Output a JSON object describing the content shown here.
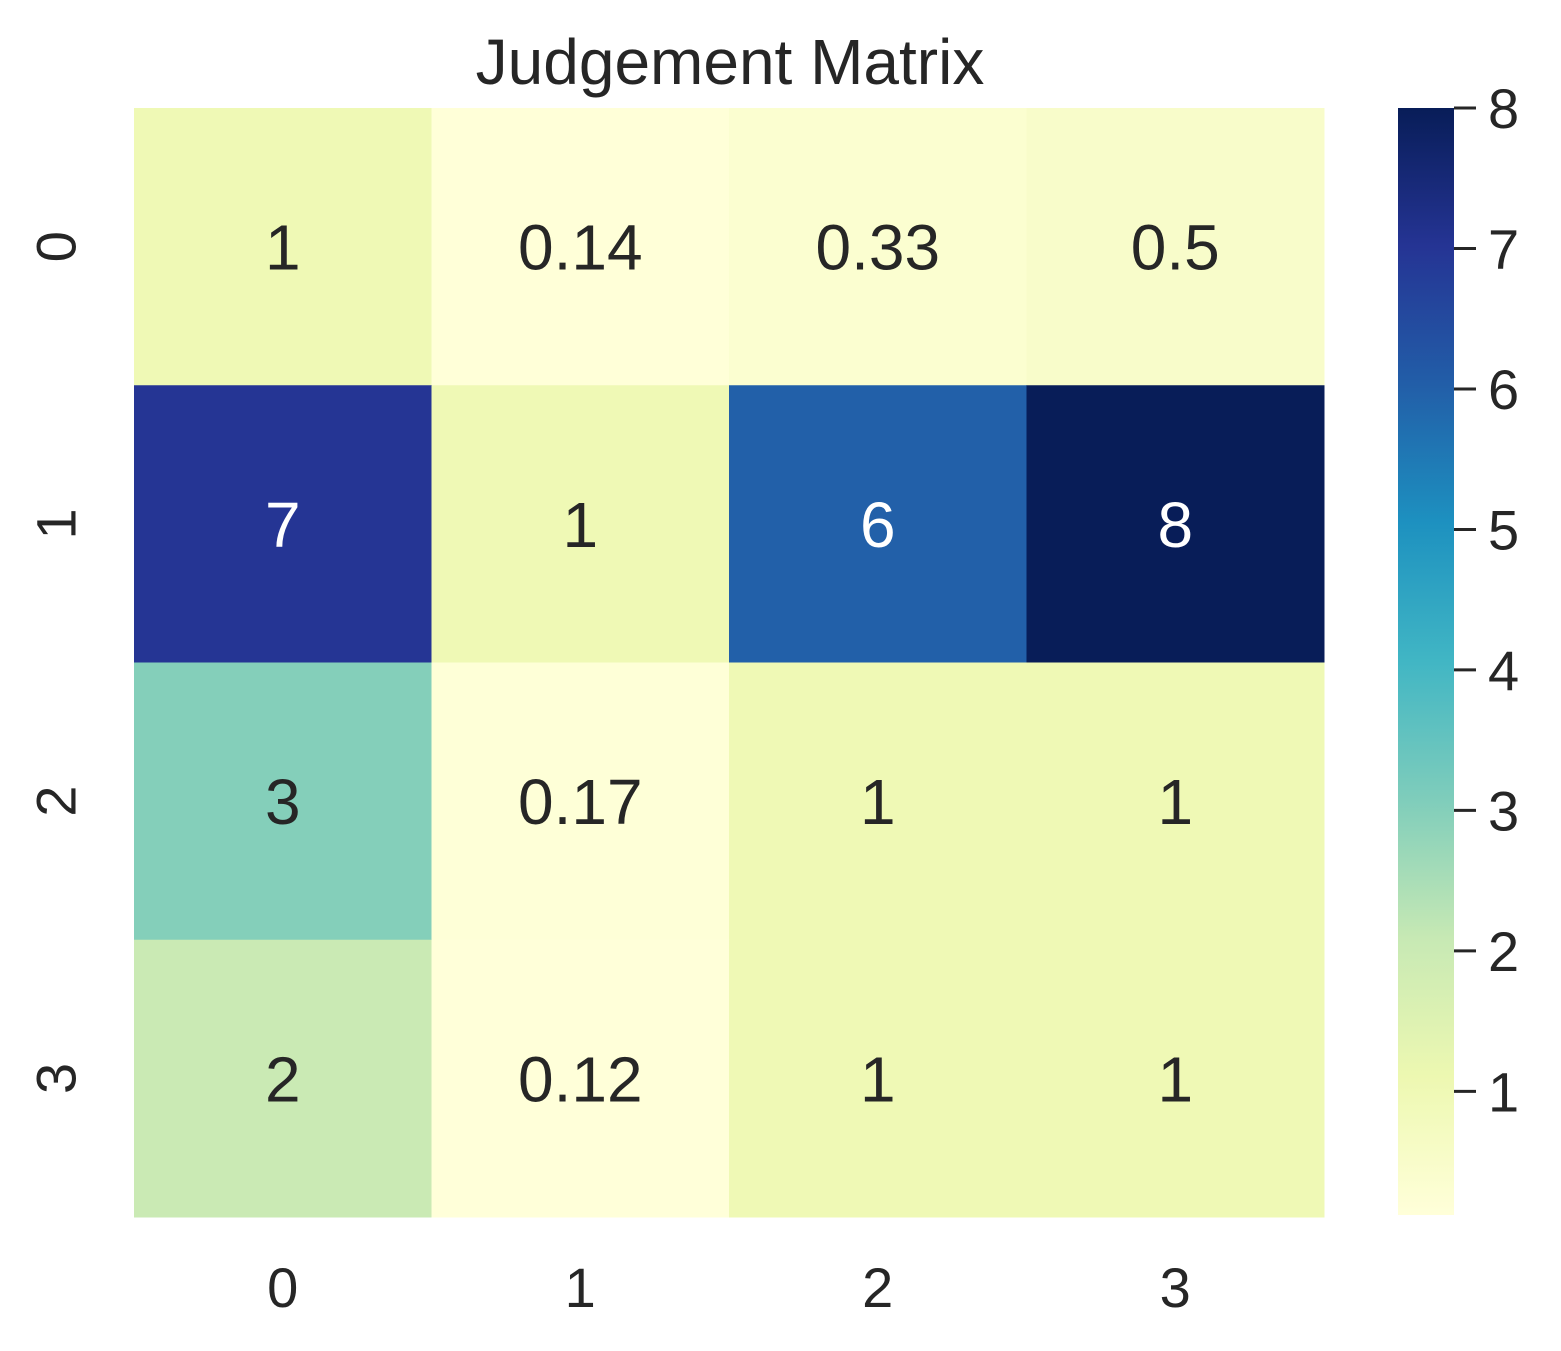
{
  "chart_data": {
    "type": "heatmap",
    "title": "Judgement Matrix",
    "xlabel": "",
    "ylabel": "",
    "x_categories": [
      "0",
      "1",
      "2",
      "3"
    ],
    "y_categories": [
      "0",
      "1",
      "2",
      "3"
    ],
    "values": [
      [
        1,
        0.14,
        0.33,
        0.5
      ],
      [
        7,
        1,
        6,
        8
      ],
      [
        3,
        0.17,
        1,
        1
      ],
      [
        2,
        0.12,
        1,
        1
      ]
    ],
    "cell_labels": [
      [
        "1",
        "0.14",
        "0.33",
        "0.5"
      ],
      [
        "7",
        "1",
        "6",
        "8"
      ],
      [
        "3",
        "0.17",
        "1",
        "1"
      ],
      [
        "2",
        "0.12",
        "1",
        "1"
      ]
    ],
    "colormap": "YlGnBu",
    "colorbar": {
      "range": [
        0.12,
        8
      ],
      "ticks": [
        1,
        2,
        3,
        4,
        5,
        6,
        7,
        8
      ],
      "tick_labels": [
        "1",
        "2",
        "3",
        "4",
        "5",
        "6",
        "7",
        "8"
      ]
    },
    "colormap_stops": [
      "#ffffd9",
      "#edf8b1",
      "#c7e9b4",
      "#7fcdbb",
      "#41b6c4",
      "#1d91c0",
      "#225ea8",
      "#253494",
      "#081d58"
    ],
    "grid": false
  }
}
